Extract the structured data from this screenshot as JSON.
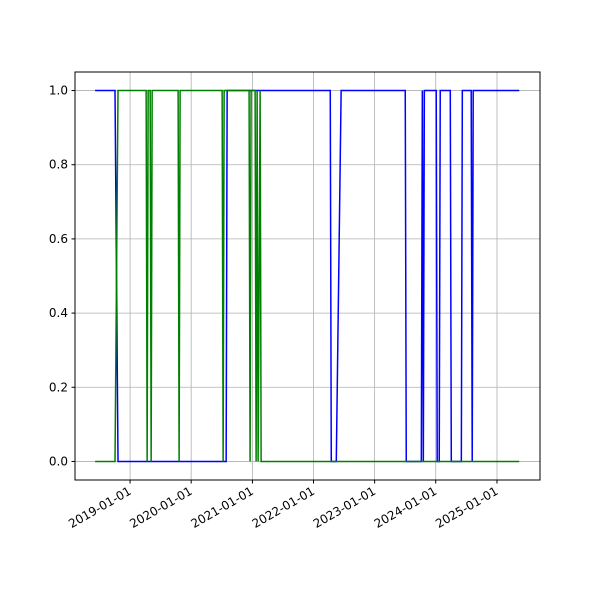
{
  "chart_data": {
    "type": "line",
    "x": [
      "2018-06-06",
      "2018-10-03",
      "2018-10-21",
      "2019-04-07",
      "2019-04-13",
      "2019-04-19",
      "2019-05-01",
      "2019-05-07",
      "2019-05-13",
      "2019-10-15",
      "2019-10-21",
      "2019-10-27",
      "2020-07-04",
      "2020-07-10",
      "2020-07-16",
      "2020-07-28",
      "2020-08-03",
      "2020-12-12",
      "2020-12-18",
      "2020-12-24",
      "2021-01-17",
      "2021-01-23",
      "2021-01-29",
      "2021-02-04",
      "2021-02-16",
      "2021-02-22",
      "2022-04-11",
      "2022-04-17",
      "2022-05-17",
      "2022-06-15",
      "2023-07-03",
      "2023-07-09",
      "2023-10-07",
      "2023-10-13",
      "2023-10-19",
      "2023-10-25",
      "2024-01-04",
      "2024-01-10",
      "2024-01-22",
      "2024-01-28",
      "2024-03-28",
      "2024-04-03",
      "2024-06-02",
      "2024-06-08",
      "2024-07-31",
      "2024-08-06",
      "2024-08-12",
      "2025-05-14"
    ],
    "series": [
      {
        "color": "#0000ff",
        "values": [
          1,
          1,
          0,
          0,
          0,
          0,
          0,
          0,
          0,
          0,
          0,
          0,
          0,
          0,
          0,
          0,
          1,
          1,
          1,
          1,
          1,
          1,
          1,
          1,
          1,
          1,
          1,
          0,
          0,
          1,
          1,
          0,
          0,
          1,
          0,
          1,
          1,
          0,
          0,
          1,
          1,
          0,
          0,
          1,
          1,
          0,
          1,
          1
        ]
      },
      {
        "color": "#008000",
        "values": [
          0,
          0,
          1,
          1,
          0,
          1,
          1,
          0,
          1,
          1,
          0,
          1,
          1,
          0,
          1,
          1,
          1,
          1,
          0,
          1,
          1,
          0,
          1,
          0,
          1,
          0,
          0,
          0,
          0,
          0,
          0,
          0,
          0,
          0,
          0,
          0,
          0,
          0,
          0,
          0,
          0,
          0,
          0,
          0,
          0,
          0,
          0,
          0
        ]
      }
    ],
    "xlim": [
      "2018-02-06",
      "2025-09-15"
    ],
    "xticks": [
      "2019-01-01",
      "2020-01-01",
      "2021-01-01",
      "2022-01-01",
      "2023-01-01",
      "2024-01-01",
      "2025-01-01"
    ],
    "ylim": [
      -0.05,
      1.05
    ],
    "yticks": [
      {
        "value": 0,
        "label": "0.0"
      },
      {
        "value": 0.2,
        "label": "0.2"
      },
      {
        "value": 0.4,
        "label": "0.4"
      },
      {
        "value": 0.6,
        "label": "0.6"
      },
      {
        "value": 0.8,
        "label": "0.8"
      },
      {
        "value": 1,
        "label": "1.0"
      }
    ],
    "grid": true
  }
}
